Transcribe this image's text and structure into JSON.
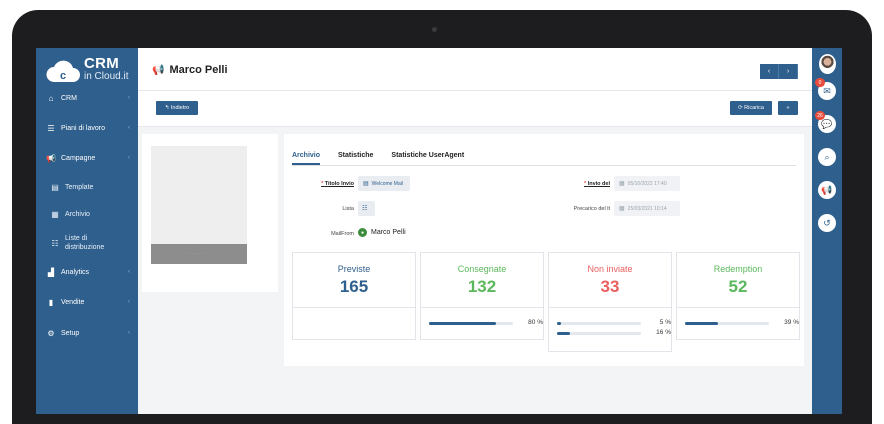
{
  "app": {
    "logo_text_1": "CRM",
    "logo_text_2": "in Cloud.it",
    "brand_color": "#2f5f8c"
  },
  "sidebar": {
    "items": [
      {
        "label": "CRM",
        "icon": "home-icon"
      },
      {
        "label": "Piani di lavoro",
        "icon": "list-icon"
      },
      {
        "label": "Campagne",
        "icon": "megaphone-icon"
      },
      {
        "label": "Template",
        "icon": "template-icon"
      },
      {
        "label": "Archivio",
        "icon": "archive-icon"
      },
      {
        "label": "Liste di distribuzione",
        "icon": "list-bullets-icon"
      },
      {
        "label": "Analytics",
        "icon": "chart-icon"
      },
      {
        "label": "Vendite",
        "icon": "document-icon"
      },
      {
        "label": "Setup",
        "icon": "gear-icon"
      }
    ]
  },
  "right_bar": {
    "badges": {
      "mail": "0",
      "chat": "26"
    }
  },
  "header": {
    "title": "Marco Pelli",
    "prev": "‹",
    "next": "›"
  },
  "actions": {
    "back": "↰ Indietro",
    "reload": "⟳ Ricarica",
    "more": "»"
  },
  "tabs": [
    "Archivio",
    "Statistiche",
    "Statistiche UserAgent"
  ],
  "form": {
    "titolo_invio_label": "Titolo Invio",
    "titolo_invio_value": "Welcome Mail",
    "lista_label": "Lista",
    "mailfrom_label": "MailFrom",
    "mailfrom_value": "Marco Pelli",
    "invio_del_label": "Invio del",
    "invio_del_value": "05/10/2022 17:40",
    "precarico_label": "Precarico del lt",
    "precarico_value": "25/03/2021 10:14"
  },
  "stats": [
    {
      "label": "Previste",
      "value": "165",
      "color": "#2f5f8c"
    },
    {
      "label": "Consegnate",
      "value": "132",
      "color": "#5cb85c",
      "bar_pct": 80,
      "bar_text": "80 %"
    },
    {
      "label": "Non inviate",
      "value": "33",
      "color": "#e96060",
      "bars": [
        {
          "pct": 5,
          "text": "5 %"
        },
        {
          "pct": 16,
          "text": "16 %"
        }
      ]
    },
    {
      "label": "Redemption",
      "value": "52",
      "color": "#5cb85c",
      "bar_pct": 39,
      "bar_text": "39 %"
    }
  ]
}
